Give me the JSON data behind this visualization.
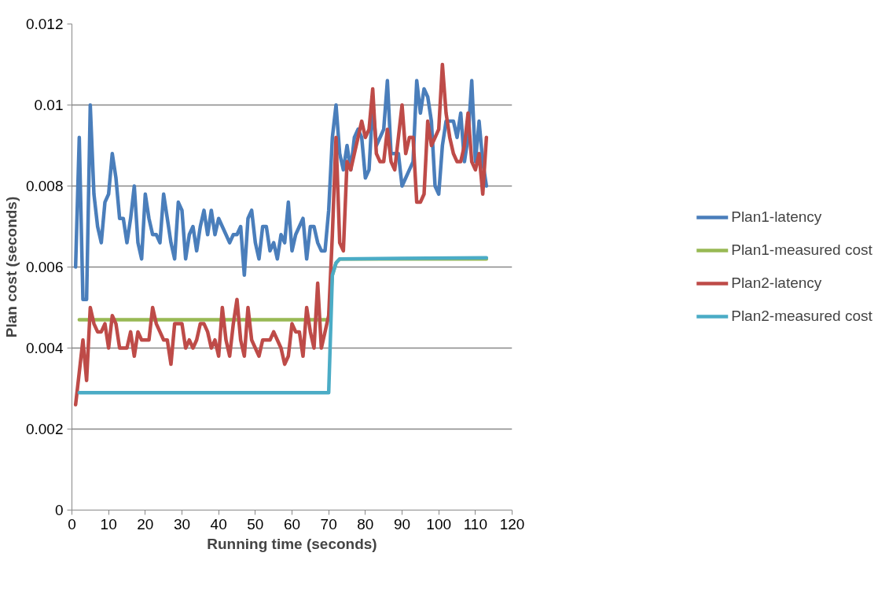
{
  "chart_data": {
    "type": "line",
    "xlabel": "Running time (seconds)",
    "ylabel": "Plan cost (seconds)",
    "xlim": [
      0,
      120
    ],
    "xticks": [
      0,
      10,
      20,
      30,
      40,
      50,
      60,
      70,
      80,
      90,
      100,
      110,
      120
    ],
    "ylim": [
      0,
      0.012
    ],
    "yticks": [
      0,
      0.002,
      0.004,
      0.006,
      0.008,
      0.01,
      0.012
    ],
    "grid": "y",
    "legend": "right",
    "line_style": "solid",
    "marker": "none",
    "series": [
      {
        "name": "Plan1-latency",
        "color": "#4a7ebb",
        "x": [
          1,
          2,
          3,
          4,
          5,
          6,
          7,
          8,
          9,
          10,
          11,
          12,
          13,
          14,
          15,
          16,
          17,
          18,
          19,
          20,
          21,
          22,
          23,
          24,
          25,
          26,
          27,
          28,
          29,
          30,
          31,
          32,
          33,
          34,
          35,
          36,
          37,
          38,
          39,
          40,
          41,
          42,
          43,
          44,
          45,
          46,
          47,
          48,
          49,
          50,
          51,
          52,
          53,
          54,
          55,
          56,
          57,
          58,
          59,
          60,
          61,
          62,
          63,
          64,
          65,
          66,
          67,
          68,
          69,
          70,
          71,
          72,
          73,
          74,
          75,
          76,
          77,
          78,
          79,
          80,
          81,
          82,
          83,
          84,
          85,
          86,
          87,
          88,
          89,
          90,
          91,
          92,
          93,
          94,
          95,
          96,
          97,
          98,
          99,
          100,
          101,
          102,
          103,
          104,
          105,
          106,
          107,
          108,
          109,
          110,
          111,
          112,
          113
        ],
        "values": [
          0.006,
          0.0092,
          0.0052,
          0.0052,
          0.01,
          0.0078,
          0.007,
          0.0066,
          0.0076,
          0.0078,
          0.0088,
          0.0082,
          0.0072,
          0.0072,
          0.0066,
          0.0072,
          0.008,
          0.0066,
          0.0062,
          0.0078,
          0.0072,
          0.0068,
          0.0068,
          0.0066,
          0.0078,
          0.0072,
          0.0066,
          0.0062,
          0.0076,
          0.0074,
          0.0062,
          0.0068,
          0.007,
          0.0064,
          0.007,
          0.0074,
          0.0068,
          0.0074,
          0.0068,
          0.0072,
          0.007,
          0.0068,
          0.0066,
          0.0068,
          0.0068,
          0.007,
          0.0058,
          0.0072,
          0.0074,
          0.0066,
          0.0062,
          0.007,
          0.007,
          0.0064,
          0.0066,
          0.0062,
          0.0068,
          0.0066,
          0.0076,
          0.0064,
          0.0068,
          0.007,
          0.0072,
          0.0062,
          0.007,
          0.007,
          0.0066,
          0.0064,
          0.0064,
          0.0074,
          0.0092,
          0.01,
          0.0088,
          0.0084,
          0.009,
          0.0084,
          0.0092,
          0.0094,
          0.0092,
          0.0082,
          0.0084,
          0.01,
          0.009,
          0.0092,
          0.0094,
          0.0106,
          0.0088,
          0.0088,
          0.0088,
          0.008,
          0.0082,
          0.0084,
          0.0086,
          0.0106,
          0.0098,
          0.0104,
          0.0102,
          0.0096,
          0.008,
          0.0078,
          0.009,
          0.0096,
          0.0096,
          0.0096,
          0.0092,
          0.0098,
          0.0086,
          0.0092,
          0.0106,
          0.0086,
          0.0096,
          0.0086,
          0.008
        ]
      },
      {
        "name": "Plan1-measured cost",
        "color": "#98b954",
        "x": [
          2,
          70,
          71,
          72,
          73,
          113
        ],
        "values": [
          0.0047,
          0.0047,
          0.0058,
          0.0061,
          0.0062,
          0.0062
        ]
      },
      {
        "name": "Plan2-latency",
        "color": "#be4b48",
        "x": [
          1,
          2,
          3,
          4,
          5,
          6,
          7,
          8,
          9,
          10,
          11,
          12,
          13,
          14,
          15,
          16,
          17,
          18,
          19,
          20,
          21,
          22,
          23,
          24,
          25,
          26,
          27,
          28,
          29,
          30,
          31,
          32,
          33,
          34,
          35,
          36,
          37,
          38,
          39,
          40,
          41,
          42,
          43,
          44,
          45,
          46,
          47,
          48,
          49,
          50,
          51,
          52,
          53,
          54,
          55,
          56,
          57,
          58,
          59,
          60,
          61,
          62,
          63,
          64,
          65,
          66,
          67,
          68,
          69,
          70,
          71,
          72,
          73,
          74,
          75,
          76,
          77,
          78,
          79,
          80,
          81,
          82,
          83,
          84,
          85,
          86,
          87,
          88,
          89,
          90,
          91,
          92,
          93,
          94,
          95,
          96,
          97,
          98,
          99,
          100,
          101,
          102,
          103,
          104,
          105,
          106,
          107,
          108,
          109,
          110,
          111,
          112,
          113
        ],
        "values": [
          0.0026,
          0.0034,
          0.0042,
          0.0032,
          0.005,
          0.0046,
          0.0044,
          0.0044,
          0.0046,
          0.004,
          0.0048,
          0.0046,
          0.004,
          0.004,
          0.004,
          0.0044,
          0.0038,
          0.0044,
          0.0042,
          0.0042,
          0.0042,
          0.005,
          0.0046,
          0.0044,
          0.0042,
          0.0042,
          0.0036,
          0.0046,
          0.0046,
          0.0046,
          0.004,
          0.0042,
          0.004,
          0.0042,
          0.0046,
          0.0046,
          0.0044,
          0.004,
          0.0042,
          0.0038,
          0.005,
          0.0042,
          0.0038,
          0.0046,
          0.0052,
          0.0042,
          0.0038,
          0.005,
          0.0042,
          0.004,
          0.0038,
          0.0042,
          0.0042,
          0.0042,
          0.0044,
          0.0042,
          0.004,
          0.0036,
          0.0038,
          0.0046,
          0.0044,
          0.0044,
          0.0038,
          0.005,
          0.0044,
          0.004,
          0.0056,
          0.004,
          0.0044,
          0.0048,
          0.0068,
          0.0092,
          0.0066,
          0.0064,
          0.0086,
          0.0084,
          0.0088,
          0.0092,
          0.0096,
          0.0092,
          0.0094,
          0.0104,
          0.0088,
          0.0086,
          0.0086,
          0.0094,
          0.0086,
          0.0084,
          0.0092,
          0.01,
          0.0088,
          0.0092,
          0.0092,
          0.0076,
          0.0076,
          0.0078,
          0.0096,
          0.009,
          0.0092,
          0.0094,
          0.011,
          0.0098,
          0.0092,
          0.0088,
          0.0086,
          0.0086,
          0.009,
          0.0098,
          0.0086,
          0.0084,
          0.0088,
          0.0078,
          0.0092
        ]
      },
      {
        "name": "Plan2-measured cost",
        "color": "#4bacc6",
        "x": [
          2,
          70,
          71,
          72,
          73,
          113
        ],
        "values": [
          0.0029,
          0.0029,
          0.0058,
          0.0061,
          0.0062,
          0.00623
        ]
      }
    ]
  }
}
